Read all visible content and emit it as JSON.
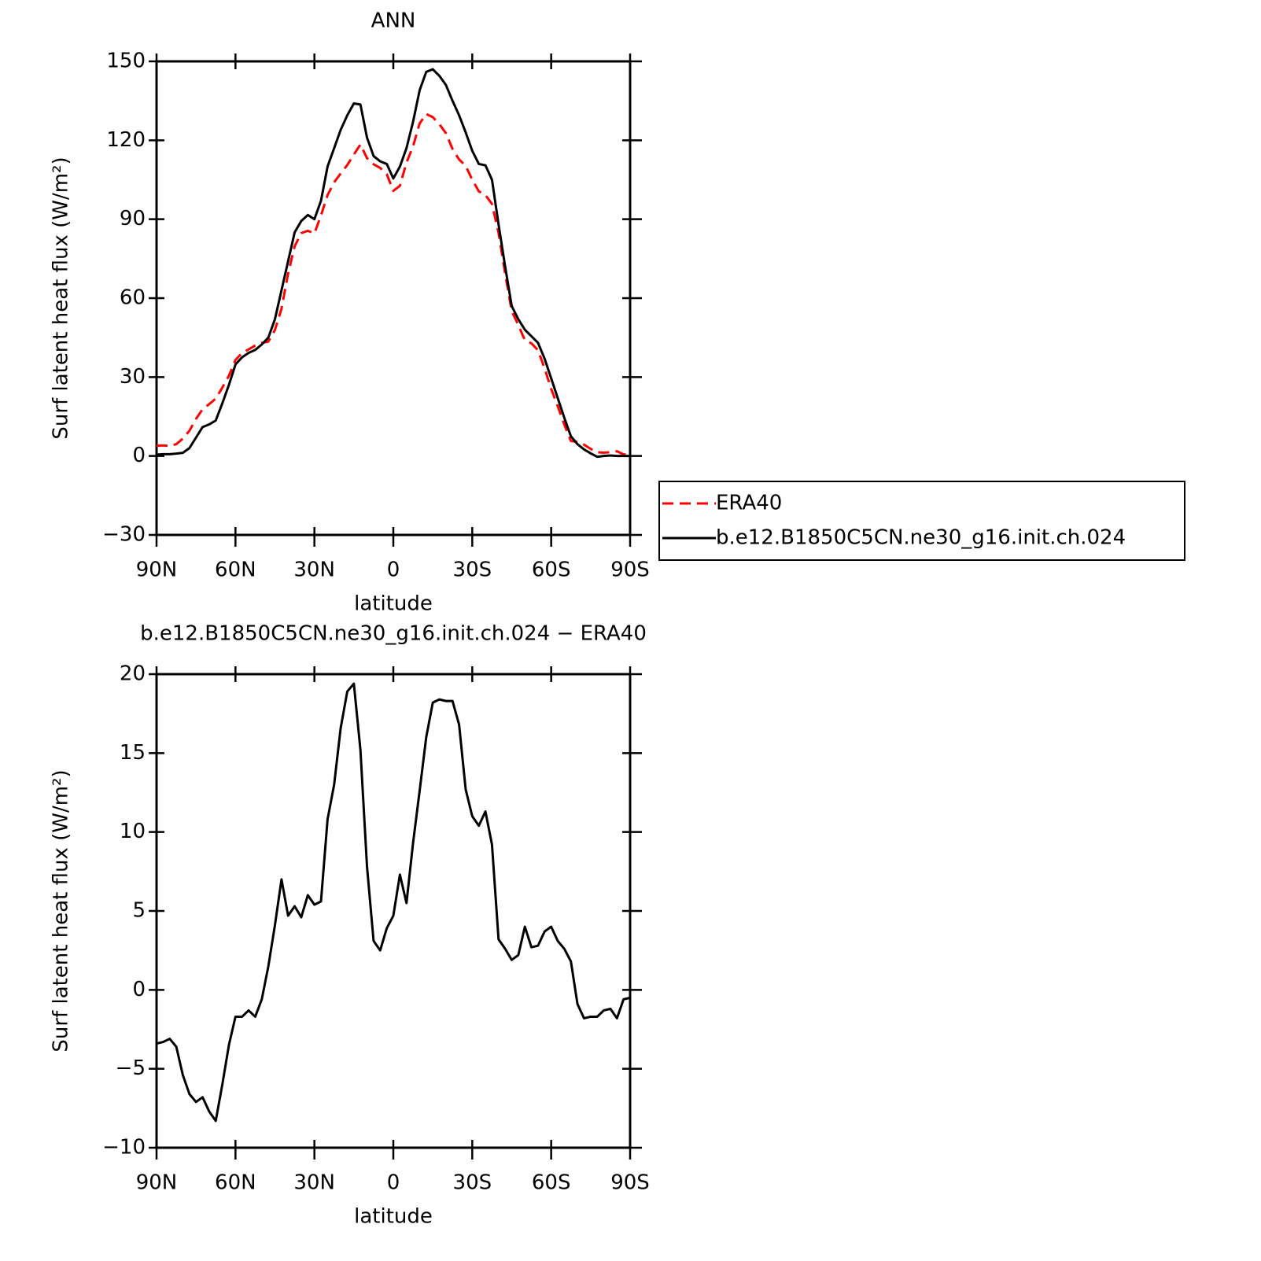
{
  "chart_data": [
    {
      "type": "line",
      "title": "ANN",
      "xlabel": "latitude",
      "ylabel": "Surf latent heat flux (W/m²)",
      "x": [
        90,
        87.5,
        85,
        82.5,
        80,
        77.5,
        75,
        72.5,
        70,
        67.5,
        65,
        62.5,
        60,
        57.5,
        55,
        52.5,
        50,
        47.5,
        45,
        42.5,
        40,
        37.5,
        35,
        32.5,
        30,
        27.5,
        25,
        22.5,
        20,
        17.5,
        15,
        12.5,
        10,
        7.5,
        5,
        2.5,
        0,
        -2.5,
        -5,
        -7.5,
        -10,
        -12.5,
        -15,
        -17.5,
        -20,
        -22.5,
        -25,
        -27.5,
        -30,
        -32.5,
        -35,
        -37.5,
        -40,
        -42.5,
        -45,
        -47.5,
        -50,
        -52.5,
        -55,
        -57.5,
        -60,
        -62.5,
        -65,
        -67.5,
        -70,
        -72.5,
        -75,
        -77.5,
        -80,
        -82.5,
        -85,
        -87.5,
        -90
      ],
      "series": [
        {
          "name": "ERA40",
          "color": "#ff0000",
          "line_style": "dashed",
          "values": [
            3.9,
            4.0,
            3.8,
            4.5,
            6.6,
            9.6,
            14.1,
            17.8,
            19.7,
            21.8,
            26.0,
            30.5,
            36.5,
            39.2,
            40.5,
            42.0,
            43.0,
            43.5,
            47.9,
            56.0,
            69.3,
            79.7,
            84.7,
            85.6,
            84.6,
            91.4,
            99.2,
            104.0,
            107.4,
            110.6,
            114.6,
            118.4,
            113.2,
            110.9,
            109.5,
            107.1,
            100.8,
            102.7,
            111.5,
            117.7,
            126.4,
            130.0,
            128.8,
            126.1,
            122.7,
            116.7,
            112.7,
            110.3,
            105.0,
            100.6,
            99.2,
            95.8,
            84.8,
            69.4,
            55.1,
            49.8,
            44.0,
            42.8,
            40.2,
            33.3,
            25.5,
            18.9,
            11.9,
            5.7,
            5.4,
            4.3,
            2.7,
            1.4,
            1.3,
            1.4,
            1.8,
            0.6,
            0.5
          ]
        },
        {
          "name": "b.e12.B1850C5CN.ne30_g16.init.ch.024",
          "color": "#000000",
          "line_style": "solid",
          "values": [
            0.5,
            0.7,
            0.7,
            0.9,
            1.2,
            3,
            7,
            11,
            12,
            13.5,
            20,
            27,
            34.8,
            37.5,
            39.2,
            40.3,
            42.4,
            45,
            52,
            63,
            74,
            85,
            89.3,
            91.6,
            90,
            97,
            110,
            117,
            124,
            129.5,
            134,
            133.6,
            121,
            114,
            112,
            111,
            105.5,
            110,
            117,
            127,
            139,
            146,
            147,
            144.5,
            141,
            135,
            129.5,
            123,
            116,
            111,
            110.5,
            105,
            88,
            72,
            57,
            52,
            48,
            45.5,
            43,
            37,
            29.5,
            22,
            14.5,
            7.5,
            4.5,
            2.5,
            1,
            -0.3,
            0,
            0.2,
            0,
            0,
            0
          ]
        }
      ],
      "xlim": [
        90,
        -90
      ],
      "xticks": [
        {
          "value": 90,
          "label": "90N"
        },
        {
          "value": 60,
          "label": "60N"
        },
        {
          "value": 30,
          "label": "30N"
        },
        0,
        {
          "value": -30,
          "label": "30S"
        },
        {
          "value": -60,
          "label": "60S"
        },
        {
          "value": -90,
          "label": "90S"
        }
      ],
      "ylim": [
        -30,
        150
      ],
      "yticks": [
        {
          "value": -30,
          "label": "−30"
        },
        0,
        30,
        60,
        90,
        120,
        150
      ],
      "grid": false,
      "legend": "right"
    },
    {
      "type": "line",
      "title": "b.e12.B1850C5CN.ne30_g16.init.ch.024 − ERA40",
      "xlabel": "latitude",
      "ylabel": "Surf latent heat flux (W/m²)",
      "x": [
        90,
        87.5,
        85,
        82.5,
        80,
        77.5,
        75,
        72.5,
        70,
        67.5,
        65,
        62.5,
        60,
        57.5,
        55,
        52.5,
        50,
        47.5,
        45,
        42.5,
        40,
        37.5,
        35,
        32.5,
        30,
        27.5,
        25,
        22.5,
        20,
        17.5,
        15,
        12.5,
        10,
        7.5,
        5,
        2.5,
        0,
        -2.5,
        -5,
        -7.5,
        -10,
        -12.5,
        -15,
        -17.5,
        -20,
        -22.5,
        -25,
        -27.5,
        -30,
        -32.5,
        -35,
        -37.5,
        -40,
        -42.5,
        -45,
        -47.5,
        -50,
        -52.5,
        -55,
        -57.5,
        -60,
        -62.5,
        -65,
        -67.5,
        -70,
        -72.5,
        -75,
        -77.5,
        -80,
        -82.5,
        -85,
        -87.5,
        -90
      ],
      "series": [
        {
          "color": "#000000",
          "line_style": "solid",
          "values": [
            -3.4,
            -3.3,
            -3.1,
            -3.6,
            -5.4,
            -6.6,
            -7.1,
            -6.8,
            -7.7,
            -8.3,
            -6.0,
            -3.5,
            -1.7,
            -1.7,
            -1.3,
            -1.7,
            -0.6,
            1.5,
            4.1,
            7.0,
            4.7,
            5.3,
            4.6,
            6.0,
            5.4,
            5.6,
            10.8,
            13.0,
            16.6,
            18.9,
            19.4,
            15.2,
            7.8,
            3.1,
            2.5,
            3.9,
            4.7,
            7.3,
            5.5,
            9.3,
            12.6,
            16.0,
            18.2,
            18.4,
            18.3,
            18.3,
            16.8,
            12.7,
            11.0,
            10.4,
            11.3,
            9.2,
            3.2,
            2.6,
            1.9,
            2.2,
            4.0,
            2.7,
            2.8,
            3.7,
            4.0,
            3.1,
            2.6,
            1.8,
            -0.9,
            -1.8,
            -1.7,
            -1.7,
            -1.3,
            -1.2,
            -1.8,
            -0.6,
            -0.5
          ]
        }
      ],
      "xlim": [
        90,
        -90
      ],
      "xticks": [
        {
          "value": 90,
          "label": "90N"
        },
        {
          "value": 60,
          "label": "60N"
        },
        {
          "value": 30,
          "label": "30N"
        },
        0,
        {
          "value": -30,
          "label": "30S"
        },
        {
          "value": -60,
          "label": "60S"
        },
        {
          "value": -90,
          "label": "90S"
        }
      ],
      "ylim": [
        -10,
        20
      ],
      "yticks": [
        {
          "value": -10,
          "label": "−10"
        },
        {
          "value": -5,
          "label": "−5"
        },
        0,
        5,
        10,
        15,
        20
      ],
      "grid": false
    }
  ]
}
